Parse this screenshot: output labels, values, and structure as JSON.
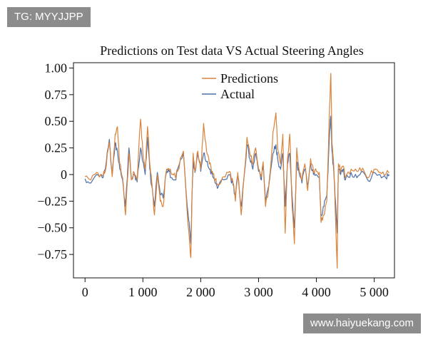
{
  "watermarks": {
    "top_left": "TG: MYYJJPP",
    "bottom_right": "www.haiyuekang.com"
  },
  "chart_data": {
    "type": "line",
    "title": "Predictions on Test data VS Actual Steering Angles",
    "xlabel": "",
    "ylabel": "",
    "xlim": [
      -200,
      5350
    ],
    "ylim": [
      -0.97,
      1.05
    ],
    "x_ticks": [
      0,
      1000,
      2000,
      3000,
      4000,
      5000
    ],
    "x_tick_labels": [
      "0",
      "1 000",
      "2 000",
      "3 000",
      "4 000",
      "5 000"
    ],
    "y_ticks": [
      1.0,
      0.75,
      0.5,
      0.25,
      0,
      -0.25,
      -0.5,
      -0.75
    ],
    "y_tick_labels": [
      "1.00",
      "0.75",
      "0.50",
      "0.25",
      "0",
      "−0.25",
      "−0.50",
      "−0.75"
    ],
    "legend": {
      "position": "top-center",
      "entries": [
        "Predictions",
        "Actual"
      ]
    },
    "series": [
      {
        "name": "Predictions",
        "color": "#d9833b",
        "x": [
          0,
          100,
          200,
          300,
          350,
          420,
          470,
          520,
          560,
          600,
          650,
          700,
          760,
          800,
          850,
          900,
          960,
          1000,
          1040,
          1080,
          1120,
          1150,
          1200,
          1250,
          1300,
          1350,
          1400,
          1450,
          1500,
          1560,
          1600,
          1700,
          1760,
          1800,
          1830,
          1850,
          1870,
          1900,
          1950,
          2000,
          2050,
          2100,
          2150,
          2200,
          2250,
          2300,
          2400,
          2500,
          2560,
          2600,
          2640,
          2700,
          2760,
          2800,
          2850,
          2900,
          2950,
          3000,
          3050,
          3080,
          3120,
          3170,
          3200,
          3250,
          3300,
          3330,
          3380,
          3420,
          3460,
          3500,
          3540,
          3580,
          3620,
          3660,
          3700,
          3750,
          3800,
          3850,
          3900,
          3950,
          4000,
          4050,
          4080,
          4130,
          4180,
          4220,
          4250,
          4270,
          4300,
          4330,
          4360,
          4380,
          4420,
          4460,
          4500,
          4600,
          4700,
          4800,
          4900,
          5000,
          5100,
          5200,
          5260
        ],
        "values": [
          -0.02,
          -0.05,
          0.02,
          -0.01,
          0.03,
          0.3,
          -0.02,
          0.38,
          0.45,
          0.1,
          -0.03,
          -0.38,
          0.2,
          -0.05,
          0.02,
          -0.05,
          0.52,
          0.2,
          0.05,
          0.45,
          0.1,
          -0.05,
          -0.38,
          0.0,
          -0.25,
          -0.3,
          0.02,
          0.05,
          0.0,
          -0.02,
          0.03,
          0.22,
          -0.3,
          -0.58,
          -0.78,
          -0.2,
          0.2,
          0.03,
          0.22,
          0.05,
          0.48,
          0.22,
          0.1,
          0.03,
          -0.05,
          -0.1,
          -0.02,
          0.03,
          -0.08,
          -0.25,
          0.02,
          -0.38,
          0.05,
          0.35,
          0.2,
          0.1,
          0.25,
          0.05,
          -0.02,
          0.12,
          -0.3,
          -0.15,
          0.02,
          0.4,
          0.58,
          0.25,
          0.1,
          0.38,
          -0.55,
          0.15,
          0.38,
          -0.3,
          -0.65,
          0.25,
          0.05,
          -0.05,
          0.1,
          -0.15,
          0.15,
          0.02,
          0.03,
          0.02,
          -0.45,
          -0.38,
          -0.25,
          0.5,
          0.95,
          0.3,
          0.08,
          -0.4,
          -0.88,
          0.1,
          0.02,
          0.08,
          -0.03,
          0.05,
          0.03,
          0.06,
          -0.03,
          0.05,
          0.02,
          0.0,
          0.02
        ]
      },
      {
        "name": "Actual",
        "color": "#4e6fa8",
        "x": [
          0,
          100,
          200,
          300,
          350,
          420,
          470,
          520,
          560,
          600,
          650,
          700,
          760,
          800,
          850,
          900,
          960,
          1000,
          1040,
          1080,
          1120,
          1150,
          1200,
          1250,
          1300,
          1350,
          1400,
          1450,
          1500,
          1560,
          1600,
          1700,
          1760,
          1800,
          1830,
          1850,
          1870,
          1900,
          1950,
          2000,
          2050,
          2100,
          2150,
          2200,
          2250,
          2300,
          2400,
          2500,
          2560,
          2600,
          2640,
          2700,
          2760,
          2800,
          2850,
          2900,
          2950,
          3000,
          3050,
          3080,
          3120,
          3170,
          3200,
          3250,
          3300,
          3330,
          3380,
          3420,
          3460,
          3500,
          3540,
          3580,
          3620,
          3660,
          3700,
          3750,
          3800,
          3850,
          3900,
          3950,
          4000,
          4050,
          4080,
          4130,
          4180,
          4220,
          4250,
          4270,
          4300,
          4330,
          4360,
          4380,
          4420,
          4460,
          4500,
          4600,
          4700,
          4800,
          4900,
          5000,
          5100,
          5200,
          5260
        ],
        "values": [
          -0.04,
          -0.08,
          0.0,
          -0.03,
          0.05,
          0.33,
          0.0,
          0.3,
          0.22,
          0.05,
          -0.05,
          -0.3,
          0.25,
          -0.03,
          0.0,
          -0.07,
          0.25,
          0.12,
          0.0,
          0.35,
          0.05,
          -0.1,
          -0.3,
          0.02,
          -0.18,
          -0.22,
          0.0,
          0.03,
          -0.03,
          -0.05,
          0.05,
          0.2,
          -0.25,
          -0.45,
          -0.65,
          -0.18,
          0.12,
          0.02,
          0.2,
          0.03,
          0.2,
          0.12,
          0.05,
          0.0,
          -0.08,
          -0.12,
          -0.05,
          0.0,
          -0.1,
          -0.2,
          0.0,
          -0.3,
          0.03,
          0.28,
          0.15,
          0.05,
          0.2,
          0.03,
          -0.05,
          0.1,
          -0.25,
          -0.12,
          0.0,
          0.2,
          0.28,
          0.15,
          0.05,
          0.2,
          -0.3,
          0.1,
          0.2,
          -0.2,
          -0.5,
          0.12,
          0.02,
          -0.08,
          0.05,
          -0.1,
          0.1,
          0.0,
          0.0,
          -0.02,
          -0.38,
          -0.3,
          -0.2,
          0.3,
          0.55,
          0.22,
          0.03,
          -0.25,
          -0.55,
          0.05,
          0.0,
          0.05,
          -0.05,
          0.02,
          -0.03,
          0.03,
          -0.06,
          0.02,
          0.0,
          -0.03,
          0.0
        ]
      }
    ]
  }
}
